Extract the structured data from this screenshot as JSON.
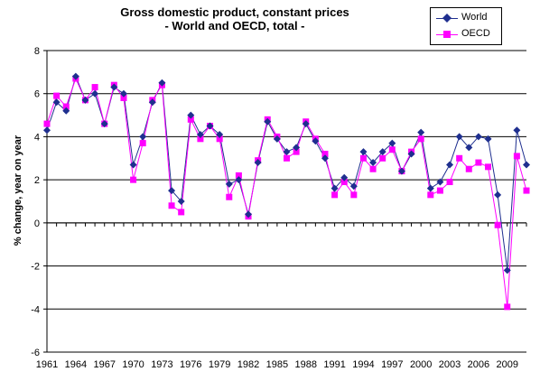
{
  "chart_data": {
    "type": "line",
    "title": "Gross domestic product, constant prices",
    "subtitle": "- World and OECD, total -",
    "xlabel": "",
    "ylabel": "% change, year on year",
    "ylim": [
      -6,
      8
    ],
    "yticks": [
      -6,
      -4,
      -2,
      0,
      2,
      4,
      6,
      8
    ],
    "xtick_labels": [
      "1961",
      "1964",
      "1967",
      "1970",
      "1973",
      "1976",
      "1979",
      "1982",
      "1985",
      "1988",
      "1991",
      "1994",
      "1997",
      "2000",
      "2003",
      "2006",
      "2009"
    ],
    "grid": "horizontal",
    "legend_position": "top-right",
    "x": [
      1961,
      1962,
      1963,
      1964,
      1965,
      1966,
      1967,
      1968,
      1969,
      1970,
      1971,
      1972,
      1973,
      1974,
      1975,
      1976,
      1977,
      1978,
      1979,
      1980,
      1981,
      1982,
      1983,
      1984,
      1985,
      1986,
      1987,
      1988,
      1989,
      1990,
      1991,
      1992,
      1993,
      1994,
      1995,
      1996,
      1997,
      1998,
      1999,
      2000,
      2001,
      2002,
      2003,
      2004,
      2005,
      2006,
      2007,
      2008,
      2009,
      2010,
      2011
    ],
    "series": [
      {
        "name": "World",
        "color": "#1F2F8F",
        "marker": "diamond",
        "values": [
          4.3,
          5.6,
          5.2,
          6.8,
          5.7,
          6.0,
          4.6,
          6.3,
          6.0,
          2.7,
          4.0,
          5.6,
          6.5,
          1.5,
          1.0,
          5.0,
          4.1,
          4.5,
          4.1,
          1.8,
          2.0,
          0.4,
          2.8,
          4.7,
          3.9,
          3.3,
          3.5,
          4.6,
          3.8,
          3.0,
          1.6,
          2.1,
          1.7,
          3.3,
          2.8,
          3.3,
          3.7,
          2.4,
          3.2,
          4.2,
          1.6,
          1.9,
          2.7,
          4.0,
          3.5,
          4.0,
          3.9,
          1.3,
          -2.2,
          4.3,
          2.7
        ]
      },
      {
        "name": "OECD",
        "color": "#FF00FF",
        "marker": "square",
        "values": [
          4.6,
          5.9,
          5.4,
          6.7,
          5.7,
          6.3,
          4.6,
          6.4,
          5.8,
          2.0,
          3.7,
          5.7,
          6.4,
          0.8,
          0.5,
          4.8,
          3.9,
          4.5,
          3.9,
          1.2,
          2.2,
          0.3,
          2.9,
          4.8,
          4.0,
          3.0,
          3.3,
          4.7,
          3.9,
          3.2,
          1.3,
          1.9,
          1.3,
          3.0,
          2.5,
          3.0,
          3.4,
          2.4,
          3.3,
          3.9,
          1.3,
          1.5,
          1.9,
          3.0,
          2.5,
          2.8,
          2.6,
          -0.1,
          -3.9,
          3.1,
          1.5
        ]
      }
    ]
  }
}
